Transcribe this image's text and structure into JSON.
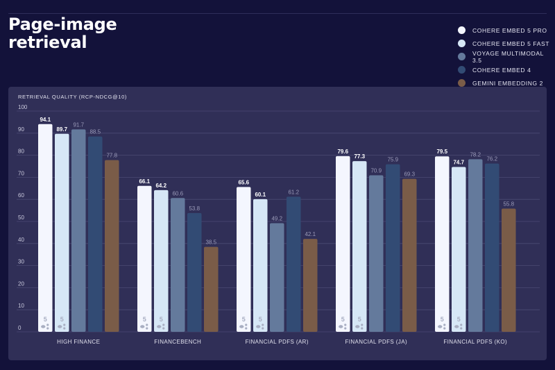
{
  "title": "Page-image retrieval",
  "colors": [
    "#f4f6fe",
    "#d6e7f6",
    "#647a9c",
    "#324b74",
    "#7a5c48"
  ],
  "chart_data": {
    "type": "bar",
    "title": "Page-image retrieval",
    "ylabel": "RETRIEVAL QUALITY (RCP-NDCG@10)",
    "xlabel": "",
    "ylim": [
      0,
      100
    ],
    "yticks": [
      0,
      10,
      20,
      30,
      40,
      50,
      60,
      70,
      80,
      90,
      100
    ],
    "grid": true,
    "legend_position": "top-right",
    "categories": [
      "HIGH FINANCE",
      "FINANCEBENCH",
      "FINANCIAL PDFS (AR)",
      "FINANCIAL PDFS (JA)",
      "FINANCIAL PDFS (KO)"
    ],
    "series": [
      {
        "name": "COHERE EMBED 5 PRO",
        "values": [
          94.1,
          66.1,
          65.6,
          79.6,
          79.5
        ]
      },
      {
        "name": "COHERE EMBED 5 FAST",
        "values": [
          89.7,
          64.2,
          60.1,
          77.3,
          74.7
        ]
      },
      {
        "name": "VOYAGE MULTIMODAL 3.5",
        "values": [
          91.7,
          60.6,
          49.2,
          70.9,
          78.2
        ]
      },
      {
        "name": "COHERE EMBED 4",
        "values": [
          88.5,
          53.8,
          61.2,
          75.9,
          76.2
        ]
      },
      {
        "name": "GEMINI EMBEDDING 2",
        "values": [
          77.8,
          38.5,
          42.1,
          69.3,
          55.8
        ]
      }
    ],
    "bar_logo_text": "5",
    "bar_logo_series": [
      0,
      1
    ]
  }
}
